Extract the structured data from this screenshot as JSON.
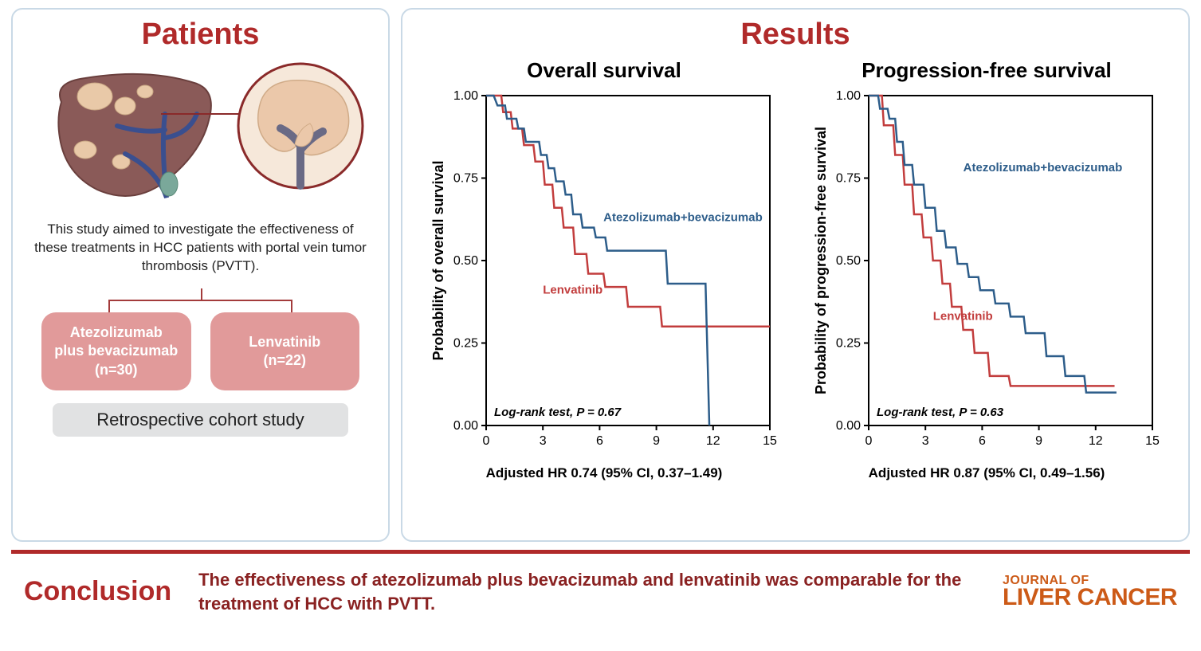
{
  "colors": {
    "brand_red": "#b02a2a",
    "brand_dark_red": "#8a2222",
    "panel_border": "#c9d9e6",
    "arm_box": "#e19a9a",
    "grey_box": "#e1e2e3",
    "accent_orange": "#cc5a17",
    "series_blue": "#2d5d8a",
    "series_red": "#c23d3d",
    "axis": "#000000",
    "plot_border": "#000000"
  },
  "patients": {
    "title": "Patients",
    "description": "This study aimed to investigate the effectiveness of these treatments in HCC patients with portal vein tumor thrombosis (PVTT).",
    "arms": [
      {
        "label_line1": "Atezolizumab",
        "label_line2": "plus bevacizumab",
        "n": "(n=30)"
      },
      {
        "label_line1": "Lenvatinib",
        "label_line2": "",
        "n": "(n=22)"
      }
    ],
    "study_type": "Retrospective cohort study"
  },
  "results": {
    "title": "Results",
    "charts": [
      {
        "title": "Overall survival",
        "ylabel": "Probability of overall survival",
        "logrank": "Log-rank test, P = 0.67",
        "hr": "Adjusted HR 0.74 (95% CI, 0.37–1.49)",
        "xlim": [
          0,
          15
        ],
        "xticks": [
          0,
          3,
          6,
          9,
          12,
          15
        ],
        "ylim": [
          0,
          1
        ],
        "yticks": [
          0,
          0.25,
          0.5,
          0.75,
          1.0
        ],
        "label_blue": "Atezolizumab+bevacizumab",
        "label_blue_pos": [
          6.2,
          0.62
        ],
        "label_red": "Lenvatinib",
        "label_red_pos": [
          3.0,
          0.4
        ],
        "series_blue": [
          [
            0,
            1.0
          ],
          [
            0.4,
            1.0
          ],
          [
            0.6,
            0.97
          ],
          [
            1.0,
            0.97
          ],
          [
            1.1,
            0.93
          ],
          [
            1.6,
            0.93
          ],
          [
            1.7,
            0.9
          ],
          [
            2.0,
            0.9
          ],
          [
            2.1,
            0.86
          ],
          [
            2.8,
            0.86
          ],
          [
            2.9,
            0.82
          ],
          [
            3.2,
            0.82
          ],
          [
            3.3,
            0.78
          ],
          [
            3.6,
            0.78
          ],
          [
            3.7,
            0.74
          ],
          [
            4.1,
            0.74
          ],
          [
            4.2,
            0.7
          ],
          [
            4.5,
            0.7
          ],
          [
            4.6,
            0.64
          ],
          [
            5.0,
            0.64
          ],
          [
            5.1,
            0.6
          ],
          [
            5.7,
            0.6
          ],
          [
            5.8,
            0.57
          ],
          [
            6.3,
            0.57
          ],
          [
            6.4,
            0.53
          ],
          [
            9.5,
            0.53
          ],
          [
            9.6,
            0.43
          ],
          [
            11.6,
            0.43
          ],
          [
            11.8,
            0.0
          ]
        ],
        "series_red": [
          [
            0,
            1.0
          ],
          [
            0.8,
            1.0
          ],
          [
            0.9,
            0.95
          ],
          [
            1.3,
            0.95
          ],
          [
            1.4,
            0.9
          ],
          [
            1.9,
            0.9
          ],
          [
            2.0,
            0.85
          ],
          [
            2.5,
            0.85
          ],
          [
            2.6,
            0.8
          ],
          [
            3.0,
            0.8
          ],
          [
            3.1,
            0.73
          ],
          [
            3.5,
            0.73
          ],
          [
            3.6,
            0.66
          ],
          [
            4.0,
            0.66
          ],
          [
            4.1,
            0.6
          ],
          [
            4.6,
            0.6
          ],
          [
            4.7,
            0.52
          ],
          [
            5.3,
            0.52
          ],
          [
            5.4,
            0.46
          ],
          [
            6.2,
            0.46
          ],
          [
            6.3,
            0.42
          ],
          [
            7.4,
            0.42
          ],
          [
            7.5,
            0.36
          ],
          [
            9.2,
            0.36
          ],
          [
            9.3,
            0.3
          ],
          [
            15,
            0.3
          ]
        ]
      },
      {
        "title": "Progression-free survival",
        "ylabel": "Probability of progression-free survival",
        "logrank": "Log-rank test, P = 0.63",
        "hr": "Adjusted HR 0.87 (95% CI, 0.49–1.56)",
        "xlim": [
          0,
          15
        ],
        "xticks": [
          0,
          3,
          6,
          9,
          12,
          15
        ],
        "ylim": [
          0,
          1
        ],
        "yticks": [
          0,
          0.25,
          0.5,
          0.75,
          1.0
        ],
        "label_blue": "Atezolizumab+bevacizumab",
        "label_blue_pos": [
          5.0,
          0.77
        ],
        "label_red": "Lenvatinib",
        "label_red_pos": [
          3.4,
          0.32
        ],
        "series_blue": [
          [
            0,
            1.0
          ],
          [
            0.5,
            1.0
          ],
          [
            0.6,
            0.96
          ],
          [
            1.0,
            0.96
          ],
          [
            1.1,
            0.93
          ],
          [
            1.4,
            0.93
          ],
          [
            1.5,
            0.86
          ],
          [
            1.8,
            0.86
          ],
          [
            1.9,
            0.79
          ],
          [
            2.3,
            0.79
          ],
          [
            2.4,
            0.73
          ],
          [
            2.9,
            0.73
          ],
          [
            3.0,
            0.66
          ],
          [
            3.5,
            0.66
          ],
          [
            3.6,
            0.59
          ],
          [
            4.0,
            0.59
          ],
          [
            4.1,
            0.54
          ],
          [
            4.6,
            0.54
          ],
          [
            4.7,
            0.49
          ],
          [
            5.2,
            0.49
          ],
          [
            5.3,
            0.45
          ],
          [
            5.8,
            0.45
          ],
          [
            5.9,
            0.41
          ],
          [
            6.6,
            0.41
          ],
          [
            6.7,
            0.37
          ],
          [
            7.4,
            0.37
          ],
          [
            7.5,
            0.33
          ],
          [
            8.2,
            0.33
          ],
          [
            8.3,
            0.28
          ],
          [
            9.3,
            0.28
          ],
          [
            9.4,
            0.21
          ],
          [
            10.3,
            0.21
          ],
          [
            10.4,
            0.15
          ],
          [
            11.4,
            0.15
          ],
          [
            11.5,
            0.1
          ],
          [
            13.0,
            0.1
          ],
          [
            13.1,
            0.1
          ]
        ],
        "series_red": [
          [
            0,
            1.0
          ],
          [
            0.7,
            1.0
          ],
          [
            0.8,
            0.91
          ],
          [
            1.3,
            0.91
          ],
          [
            1.4,
            0.82
          ],
          [
            1.8,
            0.82
          ],
          [
            1.9,
            0.73
          ],
          [
            2.3,
            0.73
          ],
          [
            2.4,
            0.64
          ],
          [
            2.8,
            0.64
          ],
          [
            2.9,
            0.57
          ],
          [
            3.3,
            0.57
          ],
          [
            3.4,
            0.5
          ],
          [
            3.8,
            0.5
          ],
          [
            3.9,
            0.43
          ],
          [
            4.3,
            0.43
          ],
          [
            4.4,
            0.36
          ],
          [
            4.9,
            0.36
          ],
          [
            5.0,
            0.29
          ],
          [
            5.5,
            0.29
          ],
          [
            5.6,
            0.22
          ],
          [
            6.3,
            0.22
          ],
          [
            6.4,
            0.15
          ],
          [
            7.4,
            0.15
          ],
          [
            7.5,
            0.12
          ],
          [
            13.0,
            0.12
          ]
        ]
      }
    ]
  },
  "conclusion": {
    "label": "Conclusion",
    "text": "The effectiveness of atezolizumab plus bevacizumab and lenvatinib was comparable for the treatment of HCC with PVTT."
  },
  "journal": {
    "top": "JOURNAL OF",
    "bottom": "LIVER CANCER"
  }
}
